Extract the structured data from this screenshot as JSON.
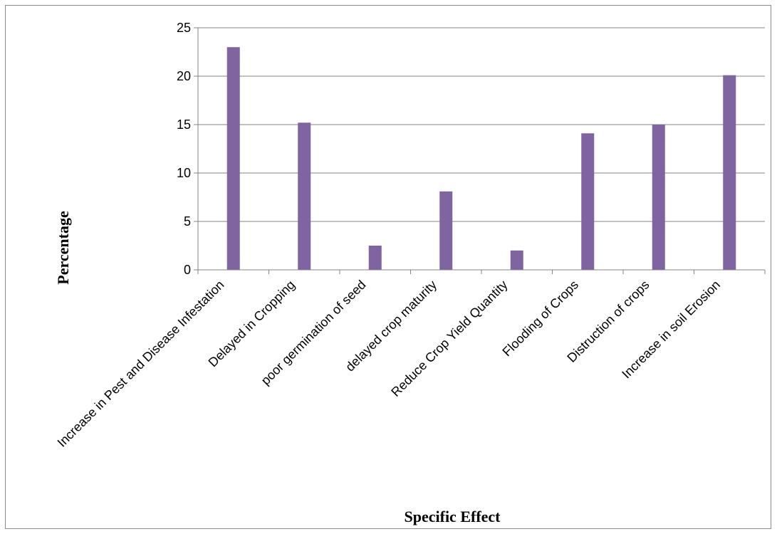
{
  "chart_data": {
    "type": "bar",
    "categories": [
      "Increase in Pest and Disease Infestation",
      "Delayed in Cropping",
      "poor germination of seed",
      "delayed crop maturity",
      "Reduce Crop Yield Quantity",
      "Flooding of Crops",
      "Distruction of crops",
      "Increase in soil Erosion"
    ],
    "values": [
      23,
      15.2,
      2.5,
      8.1,
      2,
      14.1,
      15,
      20.1
    ],
    "xlabel": "Specific Effect",
    "ylabel": "Percentage",
    "ylim": [
      0,
      25
    ],
    "yticks": [
      0,
      5,
      10,
      15,
      20,
      25
    ],
    "grid": true,
    "bar_color": "#8064a2",
    "grid_color": "#868686"
  }
}
